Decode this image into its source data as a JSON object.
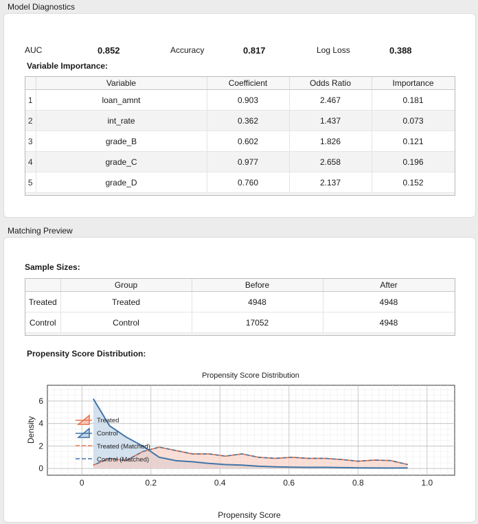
{
  "model": {
    "section_title": "Model Diagnostics",
    "metrics": [
      {
        "label": "AUC",
        "value": "0.852"
      },
      {
        "label": "Accuracy",
        "value": "0.817"
      },
      {
        "label": "Log Loss",
        "value": "0.388"
      }
    ],
    "importance_title": "Variable Importance:",
    "columns": [
      "Variable",
      "Coefficient",
      "Odds Ratio",
      "Importance"
    ],
    "rows": [
      {
        "idx": "1",
        "variable": "loan_amnt",
        "coef": "0.903",
        "odds": "2.467",
        "imp": "0.181"
      },
      {
        "idx": "2",
        "variable": "int_rate",
        "coef": "0.362",
        "odds": "1.437",
        "imp": "0.073"
      },
      {
        "idx": "3",
        "variable": "grade_B",
        "coef": "0.602",
        "odds": "1.826",
        "imp": "0.121"
      },
      {
        "idx": "4",
        "variable": "grade_C",
        "coef": "0.977",
        "odds": "2.658",
        "imp": "0.196"
      },
      {
        "idx": "5",
        "variable": "grade_D",
        "coef": "0.760",
        "odds": "2.137",
        "imp": "0.152"
      }
    ]
  },
  "matching": {
    "section_title": "Matching Preview",
    "sample_title": "Sample Sizes:",
    "columns": [
      "Group",
      "Before",
      "After"
    ],
    "rows": [
      {
        "index": "Treated",
        "group": "Treated",
        "before": "4948",
        "after": "4948"
      },
      {
        "index": "Control",
        "group": "Control",
        "before": "17052",
        "after": "4948"
      }
    ],
    "ps_title": "Propensity Score Distribution:"
  },
  "chart_data": {
    "type": "area",
    "title": "Propensity Score Distribution",
    "xlabel": "Propensity Score",
    "ylabel": "Density",
    "xlim": [
      -0.1,
      1.08
    ],
    "ylim": [
      -0.6,
      7.4
    ],
    "xticks": [
      "0",
      "0.2",
      "0.4",
      "0.6",
      "0.8",
      "1.0"
    ],
    "yticks": [
      "0",
      "2",
      "4",
      "6"
    ],
    "grid": true,
    "legend_position": "left",
    "colors": {
      "treated": "#e8734a",
      "control": "#3f74a8",
      "treated_fill": "#f7c9bc",
      "control_fill": "#c5d7e8"
    },
    "x": [
      0.033,
      0.08,
      0.128,
      0.176,
      0.224,
      0.272,
      0.32,
      0.368,
      0.416,
      0.464,
      0.512,
      0.56,
      0.608,
      0.656,
      0.704,
      0.752,
      0.8,
      0.848,
      0.896,
      0.944
    ],
    "series": [
      {
        "name": "Treated",
        "style": "step-fill",
        "values": [
          0.3,
          0.9,
          0.7,
          1.5,
          1.9,
          1.6,
          1.3,
          1.3,
          1.1,
          1.3,
          1.0,
          0.9,
          1.0,
          0.9,
          0.9,
          0.8,
          0.65,
          0.75,
          0.7,
          0.35
        ]
      },
      {
        "name": "Control",
        "style": "step-fill",
        "values": [
          6.2,
          3.8,
          2.8,
          2.0,
          1.0,
          0.7,
          0.6,
          0.45,
          0.35,
          0.3,
          0.2,
          0.15,
          0.12,
          0.1,
          0.1,
          0.08,
          0.06,
          0.05,
          0.04,
          0.05
        ]
      },
      {
        "name": "Treated (Matched)",
        "style": "dashed",
        "values": [
          0.3,
          0.9,
          0.7,
          1.5,
          1.9,
          1.6,
          1.3,
          1.3,
          1.1,
          1.3,
          1.0,
          0.9,
          1.0,
          0.9,
          0.9,
          0.8,
          0.65,
          0.75,
          0.7,
          0.35
        ]
      },
      {
        "name": "Control (Matched)",
        "style": "dashed",
        "values": [
          0.3,
          0.9,
          0.7,
          1.5,
          1.9,
          1.6,
          1.3,
          1.3,
          1.1,
          1.3,
          1.0,
          0.9,
          1.0,
          0.9,
          0.9,
          0.8,
          0.65,
          0.75,
          0.7,
          0.35
        ]
      }
    ]
  }
}
